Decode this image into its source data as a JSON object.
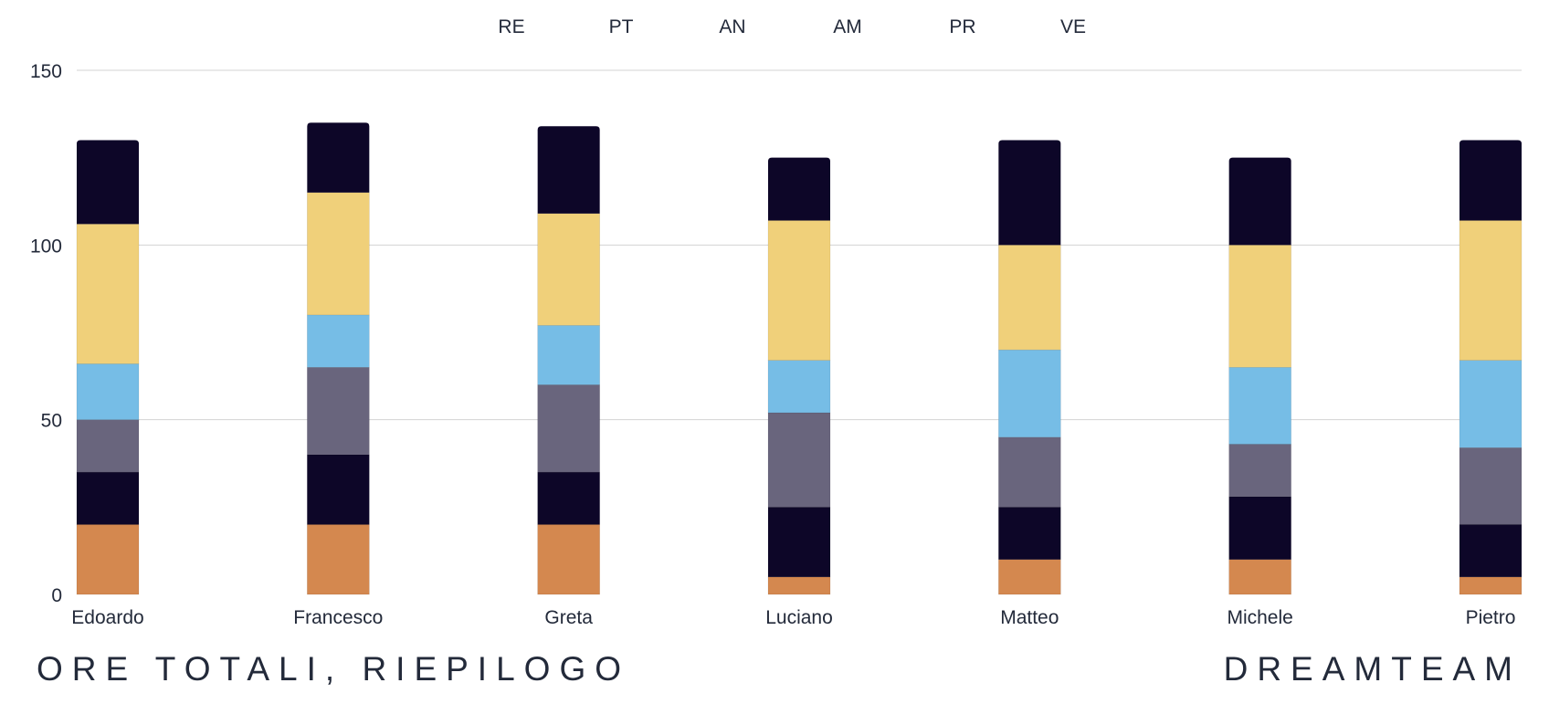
{
  "chart_data": {
    "type": "bar",
    "stacked": true,
    "categories": [
      "Edoardo",
      "Francesco",
      "Greta",
      "Luciano",
      "Matteo",
      "Michele",
      "Pietro"
    ],
    "ylim": [
      0,
      150
    ],
    "yticks": [
      "0",
      "50",
      "100",
      "150"
    ],
    "grid": true,
    "legend_position": "top",
    "legend": [
      "RE",
      "PT",
      "AN",
      "AM",
      "PR",
      "VE"
    ],
    "series": [
      {
        "name": "RE",
        "color": "#d4884f",
        "values": [
          20,
          20,
          20,
          5,
          10,
          10,
          5
        ]
      },
      {
        "name": "PT",
        "color": "#0d0628",
        "values": [
          15,
          20,
          15,
          20,
          15,
          18,
          15
        ]
      },
      {
        "name": "AN",
        "color": "#69657d",
        "values": [
          15,
          25,
          25,
          27,
          20,
          15,
          22
        ]
      },
      {
        "name": "AM",
        "color": "#76bde6",
        "values": [
          16,
          15,
          17,
          15,
          25,
          22,
          25
        ]
      },
      {
        "name": "PR",
        "color": "#f0d07a",
        "values": [
          40,
          35,
          32,
          40,
          30,
          35,
          40
        ]
      },
      {
        "name": "VE",
        "color": "#0d0628",
        "values": [
          24,
          20,
          25,
          18,
          30,
          25,
          23
        ]
      }
    ]
  },
  "footer": {
    "title": "ORE TOTALI, RIEPILOGO",
    "brand": "DREAMTEAM"
  }
}
